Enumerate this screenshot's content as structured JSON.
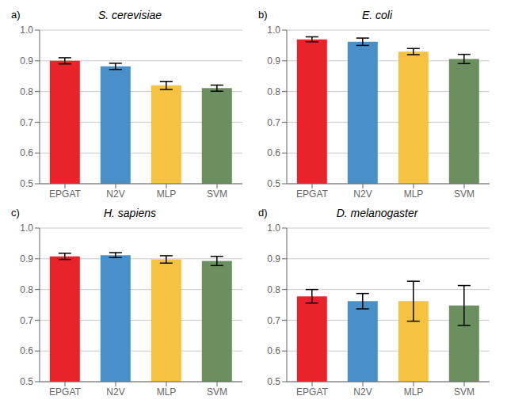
{
  "chart_data": [
    {
      "type": "bar",
      "title": "S. cerevisiae",
      "annotations": [
        "a)"
      ],
      "categories": [
        "EPGAT",
        "N2V",
        "MLP",
        "SVM"
      ],
      "values": [
        0.9,
        0.882,
        0.82,
        0.811
      ],
      "errors": [
        0.01,
        0.01,
        0.013,
        0.01
      ],
      "colors": [
        "#e8242a",
        "#4a90c8",
        "#f5c242",
        "#6b8f5e"
      ],
      "ylim": [
        0.5,
        1.0
      ],
      "yticks": [
        0.5,
        0.6,
        0.7,
        0.8,
        0.9,
        {
          "value": 1.0,
          "label": "1.0"
        }
      ],
      "grid": true
    },
    {
      "type": "bar",
      "title": "E. coli",
      "annotations": [
        "b)"
      ],
      "categories": [
        "EPGAT",
        "N2V",
        "MLP",
        "SVM"
      ],
      "values": [
        0.97,
        0.962,
        0.93,
        0.906
      ],
      "errors": [
        0.008,
        0.012,
        0.01,
        0.015
      ],
      "colors": [
        "#e8242a",
        "#4a90c8",
        "#f5c242",
        "#6b8f5e"
      ],
      "ylim": [
        0.5,
        1.0
      ],
      "yticks": [
        0.5,
        0.6,
        0.7,
        0.8,
        0.9,
        {
          "value": 1.0,
          "label": "1.0"
        }
      ],
      "grid": true
    },
    {
      "type": "bar",
      "title": "H. sapiens",
      "annotations": [
        "c)"
      ],
      "categories": [
        "EPGAT",
        "N2V",
        "MLP",
        "SVM"
      ],
      "values": [
        0.908,
        0.912,
        0.898,
        0.893
      ],
      "errors": [
        0.01,
        0.008,
        0.012,
        0.015
      ],
      "colors": [
        "#e8242a",
        "#4a90c8",
        "#f5c242",
        "#6b8f5e"
      ],
      "ylim": [
        0.5,
        1.0
      ],
      "yticks": [
        0.5,
        0.6,
        0.7,
        0.8,
        0.9,
        {
          "value": 1.0,
          "label": "1.0"
        }
      ],
      "grid": true
    },
    {
      "type": "bar",
      "title": "D. melanogaster",
      "annotations": [
        "d)"
      ],
      "categories": [
        "EPGAT",
        "N2V",
        "MLP",
        "SVM"
      ],
      "values": [
        0.778,
        0.762,
        0.762,
        0.748
      ],
      "errors": [
        0.022,
        0.025,
        0.065,
        0.065
      ],
      "colors": [
        "#e8242a",
        "#4a90c8",
        "#f5c242",
        "#6b8f5e"
      ],
      "ylim": [
        0.5,
        1.0
      ],
      "yticks": [
        0.5,
        0.6,
        0.7,
        0.8,
        0.9,
        {
          "value": 1.0,
          "label": "1.0"
        }
      ],
      "grid": true
    }
  ]
}
